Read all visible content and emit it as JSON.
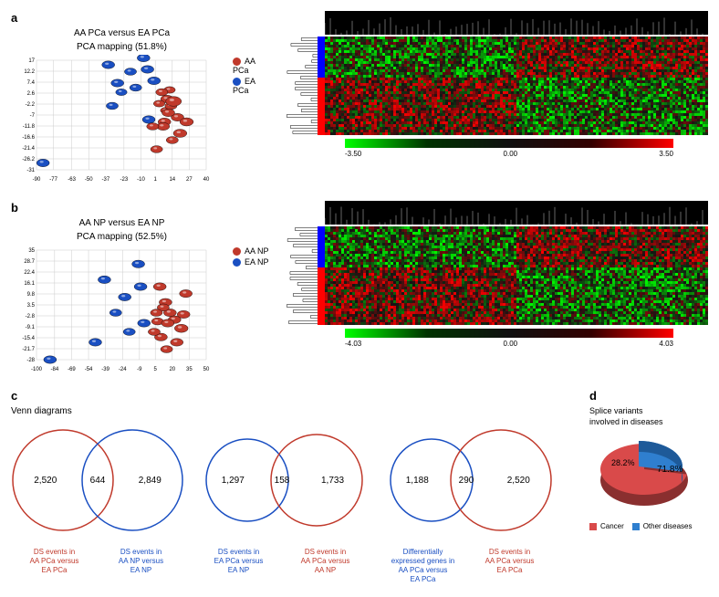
{
  "panel_a": {
    "label": "a",
    "pca": {
      "title_line1": "AA PCa versus EA PCa",
      "title_line2": "PCA mapping (51.8%)",
      "legend": [
        {
          "label": "AA PCa",
          "color": "#c0392b"
        },
        {
          "label": "EA PCa",
          "color": "#1a4fc2"
        }
      ],
      "points_AA": [
        [
          10,
          0,
          1.5
        ],
        [
          12,
          4,
          1.3
        ],
        [
          9,
          -5,
          1.2
        ],
        [
          13,
          -3,
          1.4
        ],
        [
          15,
          -1,
          1.9
        ],
        [
          8,
          -10,
          1.5
        ],
        [
          20,
          -15,
          1.6
        ],
        [
          6,
          3,
          1.4
        ],
        [
          18,
          -8,
          1.5
        ],
        [
          14,
          -18,
          1.4
        ],
        [
          7,
          -12,
          1.5
        ],
        [
          11,
          -6,
          1.5
        ],
        [
          4,
          -2,
          1.3
        ],
        [
          -1,
          -12,
          1.4
        ],
        [
          2,
          -22,
          1.4
        ],
        [
          25,
          -10,
          1.6
        ]
      ],
      "points_EA": [
        [
          -35,
          15,
          1.5
        ],
        [
          -18,
          12,
          1.4
        ],
        [
          -28,
          7,
          1.5
        ],
        [
          -8,
          18,
          1.5
        ],
        [
          -5,
          13,
          1.5
        ],
        [
          -14,
          5,
          1.4
        ],
        [
          -25,
          3,
          1.3
        ],
        [
          -4,
          -9,
          1.5
        ],
        [
          -32,
          -3,
          1.4
        ],
        [
          -85,
          -28,
          1.5
        ],
        [
          0,
          8,
          1.5
        ],
        [
          -12,
          22,
          1.4
        ]
      ],
      "x_ticks": [
        -90,
        -77,
        -63,
        -50,
        -37,
        -23,
        -10,
        1,
        14,
        27,
        40
      ],
      "y_ticks": [
        -31,
        -26.2,
        -21.4,
        -16.6,
        -11.8,
        -7,
        -2.2,
        2.6,
        7.4,
        12.2,
        17
      ]
    },
    "heatmap": {
      "cmin": -3.5,
      "cmid": 0.0,
      "cmax": 3.5,
      "bar_colors": [
        "#00ff00",
        "#003300",
        "#101010",
        "#330000",
        "#ff0000"
      ],
      "row_group_colors": [
        "#0000ff",
        "#ff0000"
      ],
      "dendro_color": "#000000",
      "seed": 11
    }
  },
  "panel_b": {
    "label": "b",
    "pca": {
      "title_line1": "AA NP versus EA NP",
      "title_line2": "PCA mapping (52.5%)",
      "legend": [
        {
          "label": "AA NP",
          "color": "#c0392b"
        },
        {
          "label": "EA NP",
          "color": "#1a4fc2"
        }
      ],
      "points_AA": [
        [
          14,
          5,
          1.5
        ],
        [
          18,
          -1,
          1.5
        ],
        [
          7,
          -6,
          1.4
        ],
        [
          22,
          -5,
          1.5
        ],
        [
          12,
          2,
          1.4
        ],
        [
          28,
          -10,
          1.6
        ],
        [
          10,
          -15,
          1.5
        ],
        [
          4,
          -12,
          1.4
        ],
        [
          16,
          -7,
          1.5
        ],
        [
          32,
          10,
          1.5
        ],
        [
          9,
          14,
          1.5
        ],
        [
          30,
          -2,
          1.5
        ],
        [
          6,
          -1,
          1.4
        ],
        [
          24,
          -18,
          1.5
        ],
        [
          15,
          -22,
          1.4
        ]
      ],
      "points_EA": [
        [
          -40,
          18,
          1.5
        ],
        [
          -10,
          27,
          1.5
        ],
        [
          -22,
          8,
          1.5
        ],
        [
          -30,
          -1,
          1.4
        ],
        [
          -5,
          -7,
          1.5
        ],
        [
          -48,
          -18,
          1.5
        ],
        [
          -18,
          -12,
          1.4
        ],
        [
          -88,
          -28,
          1.5
        ],
        [
          -8,
          14,
          1.5
        ]
      ],
      "x_ticks": [
        -100,
        -84,
        -69,
        -54,
        -39,
        -24,
        -9,
        5,
        20,
        35,
        50
      ],
      "y_ticks": [
        -28,
        -21.7,
        -15.4,
        -9.1,
        -2.8,
        3.5,
        9.8,
        16.1,
        22.4,
        28.7,
        35
      ]
    },
    "heatmap": {
      "cmin": -4.03,
      "cmid": 0.0,
      "cmax": 4.03,
      "bar_colors": [
        "#00ff00",
        "#003300",
        "#101010",
        "#330000",
        "#ff0000"
      ],
      "row_group_colors": [
        "#0000ff",
        "#ff0000"
      ],
      "dendro_color": "#000000",
      "seed": 29
    }
  },
  "panel_c": {
    "label": "c",
    "title": "Venn diagrams",
    "venns": [
      {
        "left": {
          "n": "2,520",
          "color": "#c0392b",
          "r": 55,
          "label": "DS events in\nAA PCa versus\nEA PCa"
        },
        "right": {
          "n": "2,849",
          "color": "#1a4fc2",
          "r": 55,
          "label": "DS events in\nAA NP versus\nEA NP"
        },
        "overlap": "644",
        "dx": 38
      },
      {
        "left": {
          "n": "1,297",
          "color": "#1a4fc2",
          "r": 45,
          "label": "DS events in\nEA PCa versus\nEA NP"
        },
        "right": {
          "n": "1,733",
          "color": "#c0392b",
          "r": 50,
          "label": "DS events in\nAA PCa versus\nAA NP"
        },
        "overlap": "158",
        "dx": 38
      },
      {
        "left": {
          "n": "1,188",
          "color": "#1a4fc2",
          "r": 45,
          "label": "Differentially\nexpressed genes in\nAA PCa versus\nEA PCa"
        },
        "right": {
          "n": "2,520",
          "color": "#c0392b",
          "r": 55,
          "label": "DS events in\nAA PCa versus\nEA PCa"
        },
        "overlap": "290",
        "dx": 38
      }
    ]
  },
  "panel_d": {
    "label": "d",
    "title": "Splice variants\ninvolved in diseases",
    "pie": {
      "slices": [
        {
          "label": "Cancer",
          "pct": 71.8,
          "color": "#d94a4a"
        },
        {
          "label": "Other diseases",
          "pct": 28.2,
          "color": "#2f7fcf"
        }
      ],
      "text_cancer": "71.8%",
      "text_other": "28.2%"
    }
  }
}
